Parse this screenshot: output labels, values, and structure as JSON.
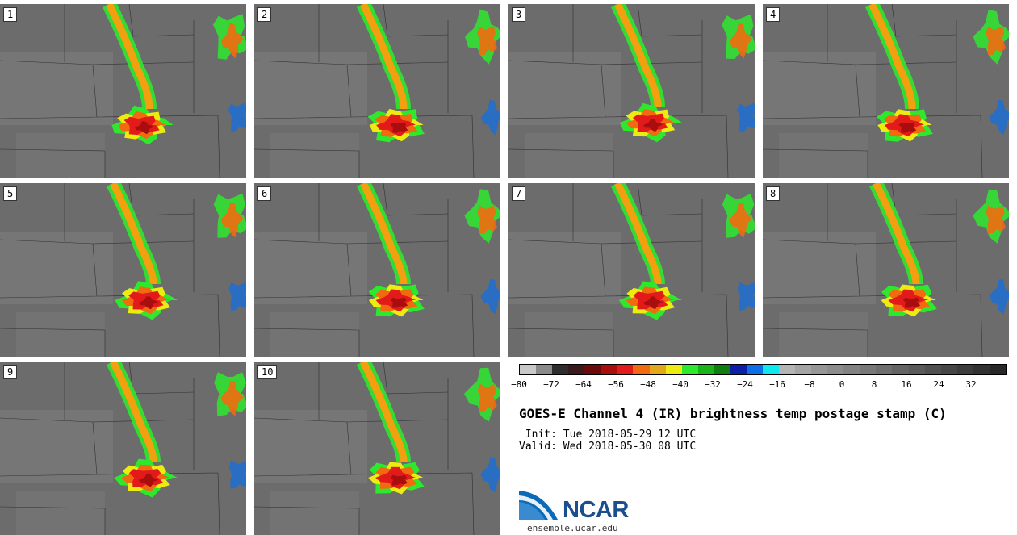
{
  "panels": [
    "1",
    "2",
    "3",
    "4",
    "5",
    "6",
    "7",
    "8",
    "9",
    "10"
  ],
  "colorbar": {
    "colors": [
      "#c8c8c8",
      "#8a8a8a",
      "#2e2e2e",
      "#3a1b1b",
      "#6b0a0a",
      "#a80e0e",
      "#e31a1a",
      "#f26a10",
      "#e0a81a",
      "#ecec10",
      "#2ee82e",
      "#18b418",
      "#0f7e0f",
      "#0c1fa6",
      "#0d6fe8",
      "#10e8f0",
      "#b4b4b4",
      "#a4a4a4",
      "#969696",
      "#8c8c8c",
      "#828282",
      "#787878",
      "#6e6e6e",
      "#646464",
      "#5a5a5a",
      "#505050",
      "#464646",
      "#3c3c3c",
      "#323232",
      "#282828"
    ],
    "ticks": [
      "−80",
      "−72",
      "−64",
      "−56",
      "−48",
      "−40",
      "−32",
      "−24",
      "−16",
      "−8",
      "0",
      "8",
      "16",
      "24",
      "32"
    ]
  },
  "title": "GOES-E Channel 4 (IR) brightness temp postage stamp (C)",
  "init": " Init: Tue 2018-05-29 12 UTC",
  "valid": "Valid: Wed 2018-05-30 08 UTC",
  "logo_text": "NCAR",
  "site": "ensemble.ucar.edu"
}
